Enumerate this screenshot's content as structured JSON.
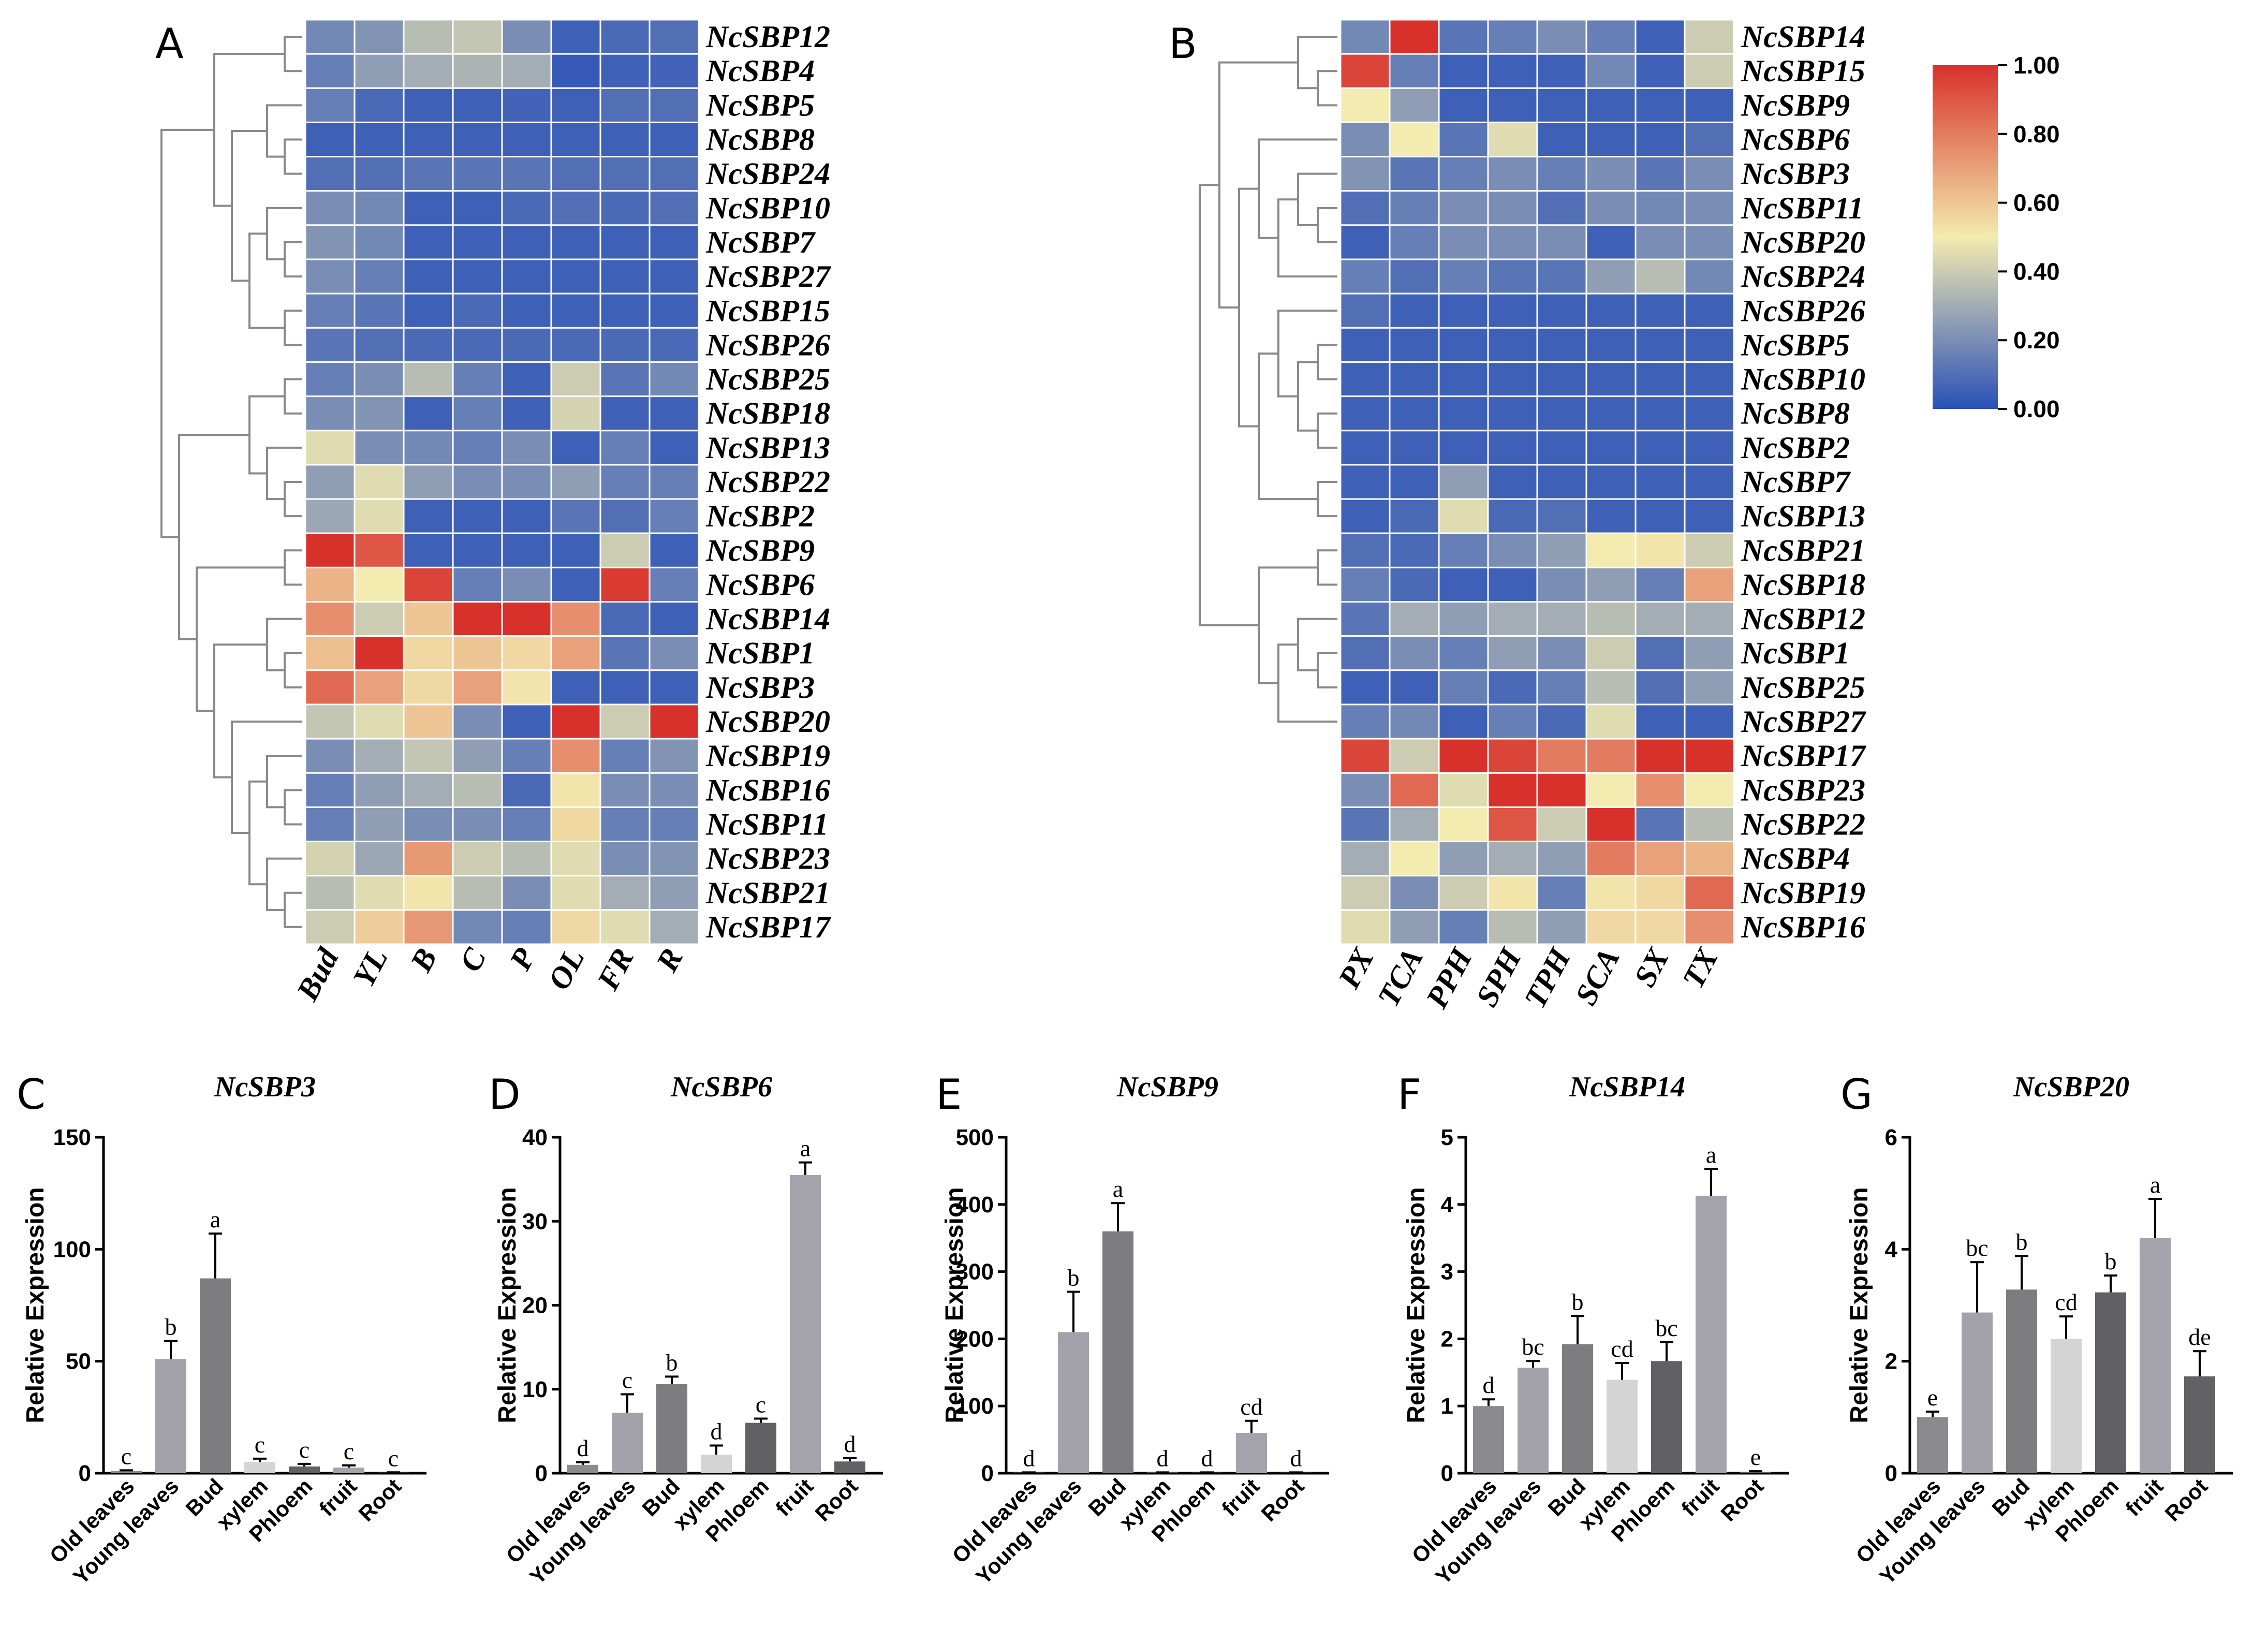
{
  "heatmapA": {
    "panel_label": "A",
    "columns": [
      "Bud",
      "YL",
      "B",
      "C",
      "P",
      "OL",
      "FR",
      "R"
    ],
    "rows": [
      {
        "gene": "NcSBP12",
        "values": [
          0.18,
          0.22,
          0.35,
          0.38,
          0.2,
          0.05,
          0.08,
          0.1
        ]
      },
      {
        "gene": "NcSBP4",
        "values": [
          0.15,
          0.25,
          0.3,
          0.32,
          0.3,
          0.03,
          0.05,
          0.06
        ]
      },
      {
        "gene": "NcSBP5",
        "values": [
          0.15,
          0.08,
          0.05,
          0.05,
          0.06,
          0.05,
          0.1,
          0.1
        ]
      },
      {
        "gene": "NcSBP8",
        "values": [
          0.05,
          0.05,
          0.05,
          0.05,
          0.05,
          0.05,
          0.05,
          0.05
        ]
      },
      {
        "gene": "NcSBP24",
        "values": [
          0.1,
          0.1,
          0.12,
          0.12,
          0.12,
          0.1,
          0.1,
          0.1
        ]
      },
      {
        "gene": "NcSBP10",
        "values": [
          0.2,
          0.18,
          0.05,
          0.05,
          0.08,
          0.1,
          0.08,
          0.1
        ]
      },
      {
        "gene": "NcSBP7",
        "values": [
          0.22,
          0.18,
          0.05,
          0.05,
          0.05,
          0.05,
          0.05,
          0.05
        ]
      },
      {
        "gene": "NcSBP27",
        "values": [
          0.2,
          0.15,
          0.05,
          0.05,
          0.05,
          0.05,
          0.05,
          0.05
        ]
      },
      {
        "gene": "NcSBP15",
        "values": [
          0.15,
          0.12,
          0.05,
          0.08,
          0.05,
          0.05,
          0.05,
          0.05
        ]
      },
      {
        "gene": "NcSBP26",
        "values": [
          0.12,
          0.1,
          0.08,
          0.08,
          0.08,
          0.08,
          0.08,
          0.08
        ]
      },
      {
        "gene": "NcSBP25",
        "values": [
          0.15,
          0.2,
          0.35,
          0.15,
          0.05,
          0.4,
          0.12,
          0.18
        ]
      },
      {
        "gene": "NcSBP18",
        "values": [
          0.2,
          0.22,
          0.05,
          0.15,
          0.05,
          0.42,
          0.05,
          0.05
        ]
      },
      {
        "gene": "NcSBP13",
        "values": [
          0.45,
          0.2,
          0.18,
          0.15,
          0.2,
          0.05,
          0.15,
          0.05
        ]
      },
      {
        "gene": "NcSBP22",
        "values": [
          0.25,
          0.45,
          0.25,
          0.2,
          0.2,
          0.25,
          0.15,
          0.15
        ]
      },
      {
        "gene": "NcSBP2",
        "values": [
          0.28,
          0.45,
          0.05,
          0.05,
          0.05,
          0.12,
          0.1,
          0.15
        ]
      },
      {
        "gene": "NcSBP9",
        "values": [
          1.0,
          0.9,
          0.05,
          0.05,
          0.05,
          0.05,
          0.4,
          0.05
        ]
      },
      {
        "gene": "NcSBP6",
        "values": [
          0.65,
          0.5,
          0.95,
          0.15,
          0.2,
          0.05,
          0.97,
          0.15
        ]
      },
      {
        "gene": "NcSBP14",
        "values": [
          0.75,
          0.4,
          0.6,
          1.0,
          1.0,
          0.75,
          0.08,
          0.05
        ]
      },
      {
        "gene": "NcSBP1",
        "values": [
          0.62,
          1.0,
          0.55,
          0.6,
          0.55,
          0.7,
          0.12,
          0.2
        ]
      },
      {
        "gene": "NcSBP3",
        "values": [
          0.85,
          0.7,
          0.55,
          0.7,
          0.52,
          0.05,
          0.05,
          0.05
        ]
      },
      {
        "gene": "NcSBP20",
        "values": [
          0.38,
          0.45,
          0.6,
          0.2,
          0.05,
          1.0,
          0.4,
          1.0
        ]
      },
      {
        "gene": "NcSBP19",
        "values": [
          0.2,
          0.3,
          0.38,
          0.25,
          0.15,
          0.75,
          0.15,
          0.22
        ]
      },
      {
        "gene": "NcSBP16",
        "values": [
          0.15,
          0.25,
          0.3,
          0.35,
          0.08,
          0.52,
          0.2,
          0.2
        ]
      },
      {
        "gene": "NcSBP11",
        "values": [
          0.15,
          0.25,
          0.2,
          0.2,
          0.15,
          0.55,
          0.15,
          0.15
        ]
      },
      {
        "gene": "NcSBP23",
        "values": [
          0.42,
          0.28,
          0.72,
          0.4,
          0.35,
          0.45,
          0.2,
          0.22
        ]
      },
      {
        "gene": "NcSBP21",
        "values": [
          0.35,
          0.45,
          0.52,
          0.35,
          0.2,
          0.45,
          0.3,
          0.25
        ]
      },
      {
        "gene": "NcSBP17",
        "values": [
          0.4,
          0.58,
          0.72,
          0.18,
          0.15,
          0.55,
          0.45,
          0.3
        ]
      }
    ]
  },
  "heatmapB": {
    "panel_label": "B",
    "columns": [
      "PX",
      "TCA",
      "PPH",
      "SPH",
      "TPH",
      "SCA",
      "SX",
      "TX"
    ],
    "rows": [
      {
        "gene": "NcSBP14",
        "values": [
          0.18,
          1.0,
          0.12,
          0.15,
          0.2,
          0.15,
          0.05,
          0.4
        ]
      },
      {
        "gene": "NcSBP15",
        "values": [
          0.95,
          0.15,
          0.05,
          0.05,
          0.05,
          0.18,
          0.05,
          0.4
        ]
      },
      {
        "gene": "NcSBP9",
        "values": [
          0.5,
          0.25,
          0.05,
          0.05,
          0.05,
          0.05,
          0.05,
          0.05
        ]
      },
      {
        "gene": "NcSBP6",
        "values": [
          0.2,
          0.5,
          0.12,
          0.45,
          0.05,
          0.05,
          0.05,
          0.1
        ]
      },
      {
        "gene": "NcSBP3",
        "values": [
          0.22,
          0.12,
          0.15,
          0.2,
          0.15,
          0.2,
          0.12,
          0.2
        ]
      },
      {
        "gene": "NcSBP11",
        "values": [
          0.1,
          0.15,
          0.2,
          0.2,
          0.1,
          0.2,
          0.18,
          0.2
        ]
      },
      {
        "gene": "NcSBP20",
        "values": [
          0.05,
          0.15,
          0.2,
          0.2,
          0.2,
          0.05,
          0.2,
          0.2
        ]
      },
      {
        "gene": "NcSBP24",
        "values": [
          0.15,
          0.1,
          0.15,
          0.12,
          0.12,
          0.25,
          0.35,
          0.18
        ]
      },
      {
        "gene": "NcSBP26",
        "values": [
          0.1,
          0.05,
          0.05,
          0.05,
          0.05,
          0.05,
          0.05,
          0.05
        ]
      },
      {
        "gene": "NcSBP5",
        "values": [
          0.05,
          0.05,
          0.05,
          0.05,
          0.05,
          0.05,
          0.05,
          0.05
        ]
      },
      {
        "gene": "NcSBP10",
        "values": [
          0.05,
          0.05,
          0.05,
          0.05,
          0.05,
          0.05,
          0.05,
          0.05
        ]
      },
      {
        "gene": "NcSBP8",
        "values": [
          0.05,
          0.05,
          0.05,
          0.05,
          0.05,
          0.05,
          0.05,
          0.05
        ]
      },
      {
        "gene": "NcSBP2",
        "values": [
          0.05,
          0.05,
          0.05,
          0.05,
          0.05,
          0.05,
          0.05,
          0.05
        ]
      },
      {
        "gene": "NcSBP7",
        "values": [
          0.05,
          0.05,
          0.25,
          0.05,
          0.05,
          0.05,
          0.05,
          0.05
        ]
      },
      {
        "gene": "NcSBP13",
        "values": [
          0.05,
          0.08,
          0.45,
          0.08,
          0.1,
          0.05,
          0.05,
          0.05
        ]
      },
      {
        "gene": "NcSBP21",
        "values": [
          0.1,
          0.08,
          0.15,
          0.2,
          0.25,
          0.5,
          0.52,
          0.4
        ]
      },
      {
        "gene": "NcSBP18",
        "values": [
          0.15,
          0.08,
          0.05,
          0.05,
          0.2,
          0.25,
          0.15,
          0.7
        ]
      },
      {
        "gene": "NcSBP12",
        "values": [
          0.12,
          0.3,
          0.25,
          0.3,
          0.3,
          0.35,
          0.3,
          0.3
        ]
      },
      {
        "gene": "NcSBP1",
        "values": [
          0.1,
          0.2,
          0.15,
          0.25,
          0.2,
          0.4,
          0.1,
          0.25
        ]
      },
      {
        "gene": "NcSBP25",
        "values": [
          0.05,
          0.05,
          0.15,
          0.08,
          0.15,
          0.35,
          0.1,
          0.25
        ]
      },
      {
        "gene": "NcSBP27",
        "values": [
          0.15,
          0.18,
          0.05,
          0.15,
          0.08,
          0.45,
          0.05,
          0.05
        ]
      },
      {
        "gene": "NcSBP17",
        "values": [
          0.95,
          0.4,
          1.0,
          0.95,
          0.8,
          0.8,
          1.0,
          1.0
        ]
      },
      {
        "gene": "NcSBP23",
        "values": [
          0.2,
          0.85,
          0.45,
          1.0,
          1.0,
          0.5,
          0.75,
          0.5
        ]
      },
      {
        "gene": "NcSBP22",
        "values": [
          0.12,
          0.3,
          0.5,
          0.9,
          0.4,
          1.0,
          0.12,
          0.35
        ]
      },
      {
        "gene": "NcSBP4",
        "values": [
          0.3,
          0.5,
          0.25,
          0.3,
          0.25,
          0.8,
          0.7,
          0.65
        ]
      },
      {
        "gene": "NcSBP19",
        "values": [
          0.4,
          0.2,
          0.4,
          0.52,
          0.15,
          0.52,
          0.55,
          0.85
        ]
      },
      {
        "gene": "NcSBP16",
        "values": [
          0.45,
          0.25,
          0.15,
          0.35,
          0.25,
          0.55,
          0.55,
          0.75
        ]
      }
    ]
  },
  "legend": {
    "ticks": [
      "1.00",
      "0.80",
      "0.60",
      "0.40",
      "0.20",
      "0.00"
    ]
  },
  "colors": {
    "low": "#2a50b8",
    "mid": "#f3ebb0",
    "high": "#d8312c",
    "grid": "#ffffff",
    "dendrogram": "#8a8a8a"
  },
  "ylabel": "Relative Expression",
  "tissues": [
    "Old leaves",
    "Young leaves",
    "Bud",
    "xylem",
    "Phloem",
    "fruit",
    "Root"
  ],
  "bar_colors": [
    "#8a8a8f",
    "#a3a2aa",
    "#7d7d80",
    "#d4d4d4",
    "#616165",
    "#a4a3ab",
    "#626266"
  ],
  "chart_data": [
    {
      "type": "bar",
      "panel_label": "C",
      "title": "NcSBP3",
      "ylabel": "Relative Expression",
      "categories": [
        "Old leaves",
        "Young leaves",
        "Bud",
        "xylem",
        "Phloem",
        "fruit",
        "Root"
      ],
      "values": [
        1,
        51,
        87,
        5,
        3,
        2.5,
        0.3
      ],
      "errors": [
        0.3,
        8,
        20,
        1.5,
        1.2,
        1,
        0.1
      ],
      "letters": [
        "c",
        "b",
        "a",
        "c",
        "c",
        "c",
        "c"
      ],
      "ylim": [
        0,
        150
      ],
      "yticks": [
        "0",
        "50",
        "100",
        "150"
      ]
    },
    {
      "type": "bar",
      "panel_label": "D",
      "title": "NcSBP6",
      "ylabel": "Relative Expression",
      "categories": [
        "Old leaves",
        "Young leaves",
        "Bud",
        "xylem",
        "Phloem",
        "fruit",
        "Root"
      ],
      "values": [
        1,
        7.2,
        10.6,
        2.2,
        6,
        35.5,
        1.4
      ],
      "errors": [
        0.3,
        2.2,
        0.9,
        1.1,
        0.5,
        1.5,
        0.4
      ],
      "letters": [
        "d",
        "c",
        "b",
        "d",
        "c",
        "a",
        "d"
      ],
      "ylim": [
        0,
        40
      ],
      "yticks": [
        "0",
        "10",
        "20",
        "30",
        "40"
      ]
    },
    {
      "type": "bar",
      "panel_label": "E",
      "title": "NcSBP9",
      "ylabel": "Relative Expression",
      "categories": [
        "Old leaves",
        "Young leaves",
        "Bud",
        "xylem",
        "Phloem",
        "fruit",
        "Root"
      ],
      "values": [
        1,
        210,
        360,
        1,
        1,
        60,
        1
      ],
      "errors": [
        0.3,
        60,
        42,
        0.3,
        0.3,
        18,
        0.3
      ],
      "letters": [
        "d",
        "b",
        "a",
        "d",
        "d",
        "cd",
        "d"
      ],
      "ylim": [
        0,
        500
      ],
      "yticks": [
        "0",
        "100",
        "200",
        "300",
        "400",
        "500"
      ]
    },
    {
      "type": "bar",
      "panel_label": "F",
      "title": "NcSBP14",
      "ylabel": "Relative Expression",
      "categories": [
        "Old leaves",
        "Young leaves",
        "Bud",
        "xylem",
        "Phloem",
        "fruit",
        "Root"
      ],
      "values": [
        1,
        1.57,
        1.92,
        1.39,
        1.67,
        4.13,
        0.02
      ],
      "errors": [
        0.1,
        0.1,
        0.42,
        0.25,
        0.28,
        0.4,
        0.01
      ],
      "letters": [
        "d",
        "bc",
        "b",
        "cd",
        "bc",
        "a",
        "e"
      ],
      "ylim": [
        0,
        5
      ],
      "yticks": [
        "0",
        "1",
        "2",
        "3",
        "4",
        "5"
      ]
    },
    {
      "type": "bar",
      "panel_label": "G",
      "title": "NcSBP20",
      "ylabel": "Relative Expression",
      "categories": [
        "Old leaves",
        "Young leaves",
        "Bud",
        "xylem",
        "Phloem",
        "fruit",
        "Root"
      ],
      "values": [
        1,
        2.87,
        3.28,
        2.4,
        3.23,
        4.2,
        1.73
      ],
      "errors": [
        0.1,
        0.9,
        0.6,
        0.4,
        0.3,
        0.7,
        0.45
      ],
      "letters": [
        "e",
        "bc",
        "b",
        "cd",
        "b",
        "a",
        "de"
      ],
      "ylim": [
        0,
        6
      ],
      "yticks": [
        "0",
        "2",
        "4",
        "6"
      ]
    }
  ]
}
